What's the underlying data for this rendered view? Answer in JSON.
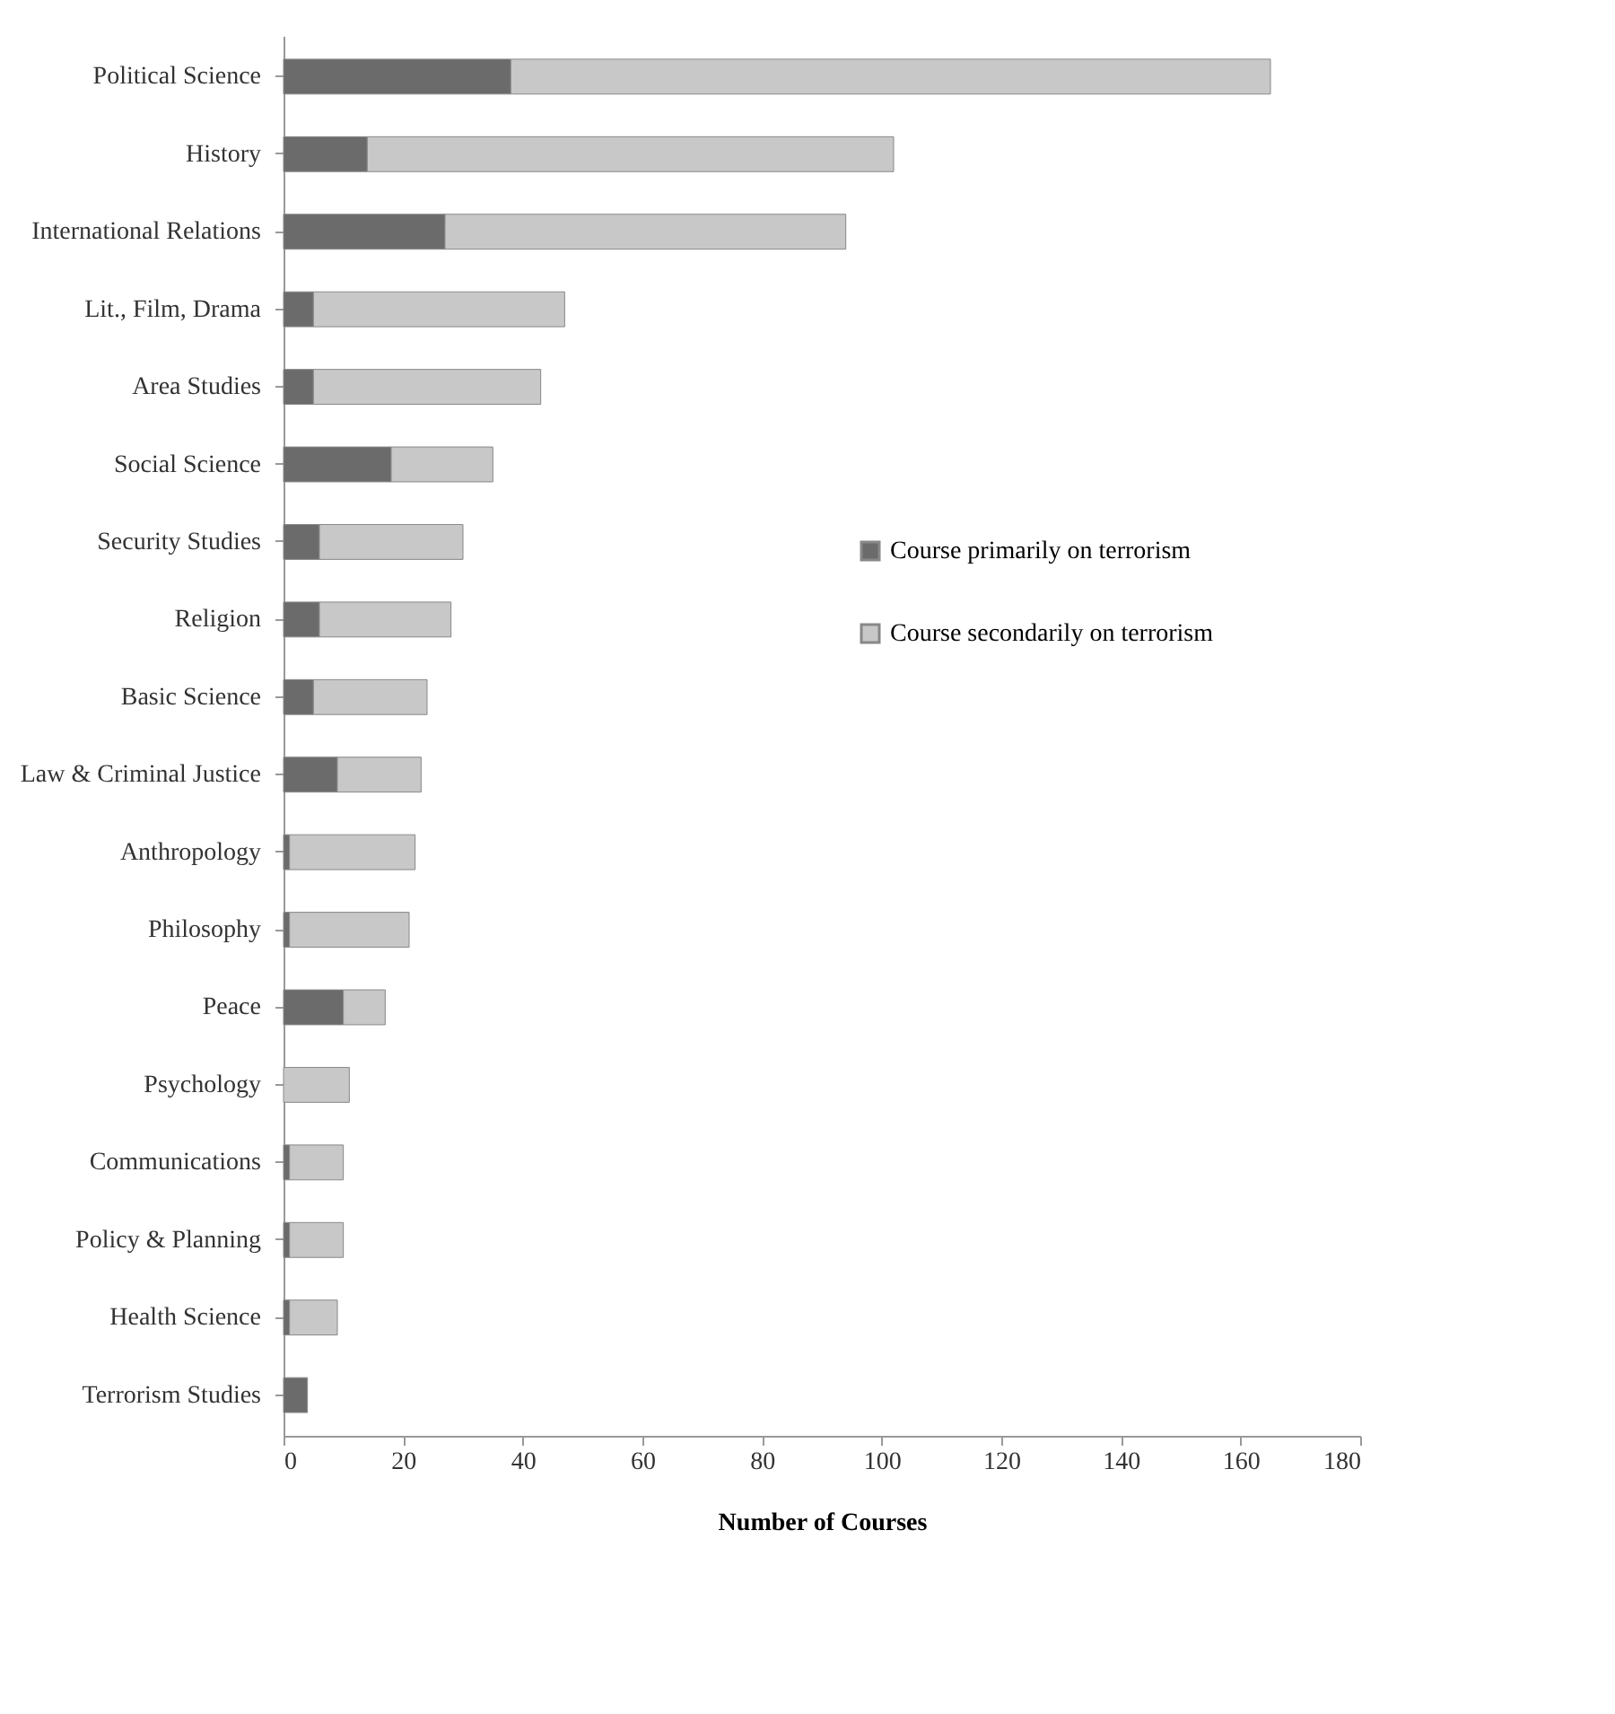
{
  "chart_data": {
    "type": "bar",
    "orientation": "horizontal",
    "stacked": true,
    "categories": [
      "Political Science",
      "History",
      "International Relations",
      "Lit., Film, Drama",
      "Area Studies",
      "Social Science",
      "Security Studies",
      "Religion",
      "Basic Science",
      "Law & Criminal Justice",
      "Anthropology",
      "Philosophy",
      "Peace",
      "Psychology",
      "Communications",
      "Policy & Planning",
      "Health Science",
      "Terrorism Studies"
    ],
    "series": [
      {
        "name": "Course primarily on terrorism",
        "color": "#6b6b6b",
        "values": [
          38,
          14,
          27,
          5,
          5,
          18,
          6,
          6,
          5,
          9,
          1,
          1,
          10,
          0,
          1,
          1,
          1,
          4
        ]
      },
      {
        "name": "Course secondarily on terrorism",
        "color": "#c8c8c8",
        "values": [
          127,
          88,
          67,
          42,
          38,
          17,
          24,
          22,
          19,
          14,
          21,
          20,
          7,
          11,
          9,
          9,
          8,
          0
        ]
      }
    ],
    "xlabel": "Number of Courses",
    "xlim": [
      0,
      180
    ],
    "xticks": [
      0,
      20,
      40,
      60,
      80,
      100,
      120,
      140,
      160,
      180
    ],
    "grid": false,
    "legend": "right"
  }
}
